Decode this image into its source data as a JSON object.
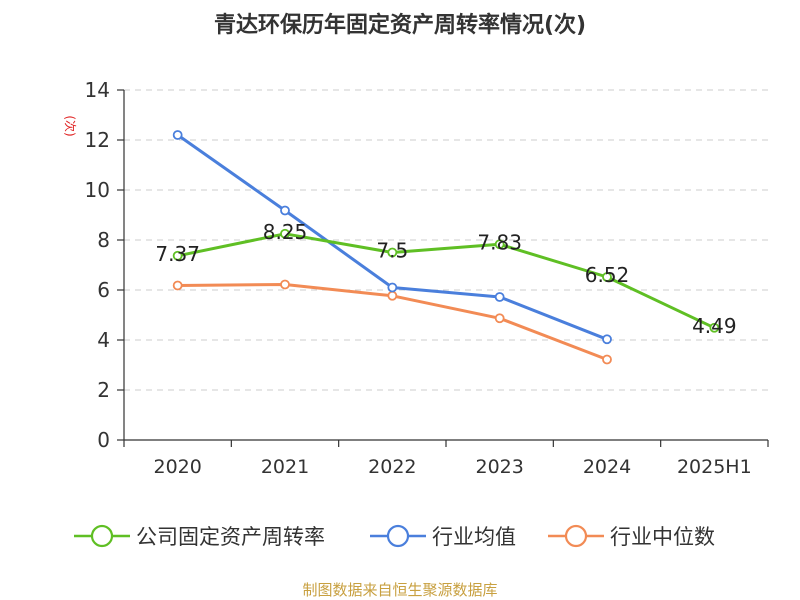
{
  "chart_data": {
    "type": "line",
    "title": "青达环保历年固定资产周转率情况(次)",
    "ylabel": "(次)",
    "xlabel": "",
    "categories": [
      "2020",
      "2021",
      "2022",
      "2023",
      "2024",
      "2025H1"
    ],
    "ylim": [
      0,
      14
    ],
    "yticks": [
      0,
      2,
      4,
      6,
      8,
      10,
      12,
      14
    ],
    "grid": true,
    "legend_position": "bottom",
    "series": [
      {
        "name": "公司固定资产周转率",
        "color": "#5fbf24",
        "values": [
          7.37,
          8.25,
          7.5,
          7.83,
          6.52,
          4.49
        ],
        "labels": [
          "7.37",
          "8.25",
          "7.5",
          "7.83",
          "6.52",
          "4.49"
        ]
      },
      {
        "name": "行业均值",
        "color": "#4a7fdc",
        "values": [
          12.2,
          9.18,
          6.1,
          5.72,
          4.03,
          null
        ]
      },
      {
        "name": "行业中位数",
        "color": "#f28b55",
        "values": [
          6.18,
          6.22,
          5.77,
          4.87,
          3.22,
          null
        ]
      }
    ]
  },
  "footer": {
    "source": "制图数据来自恒生聚源数据库",
    "source_color": "#c8a040"
  },
  "colors": {
    "axis": "#333333",
    "grid": "#cccccc",
    "ylabel": "#e02020"
  }
}
